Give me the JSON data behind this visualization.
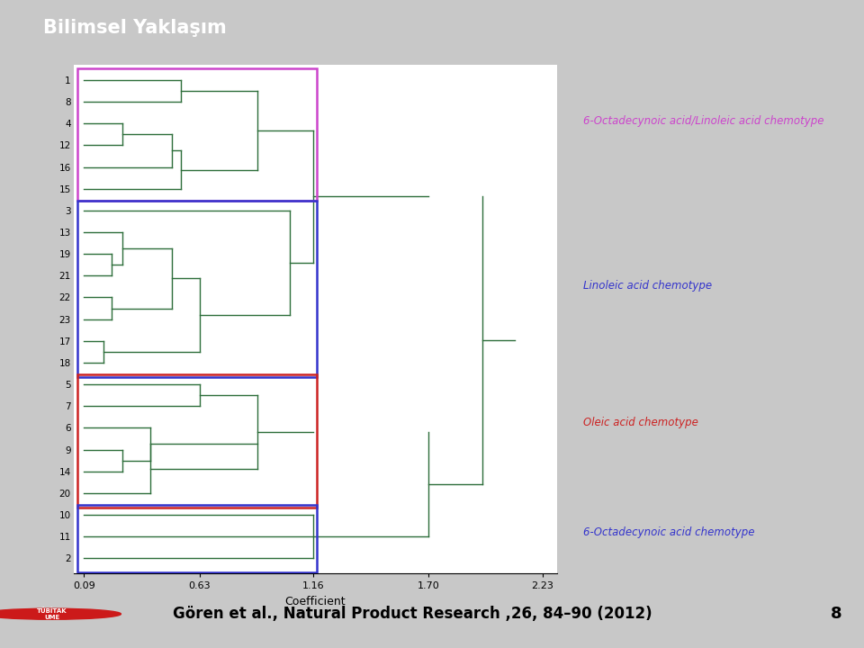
{
  "title_text": "Bilimsel Yaklaşım",
  "title_bg": "#cc1a1a",
  "title_color": "white",
  "footer_text": "Gören et al., Natural Product Research ,26, 84–90 (2012)",
  "footer_number": "8",
  "outer_bg": "#c8c8c8",
  "plot_bg": "white",
  "dendrogram_color": "#2d6e3a",
  "xlabel": "Coefficient",
  "x_ticks": [
    0.09,
    0.63,
    1.16,
    1.7,
    2.23
  ],
  "x_labels": [
    "0.09",
    "0.63",
    "1.16",
    "1.70",
    "2.23"
  ],
  "labels_top_to_bottom": [
    "1",
    "8",
    "4",
    "12",
    "16",
    "15",
    "3",
    "13",
    "19",
    "21",
    "22",
    "23",
    "17",
    "18",
    "5",
    "7",
    "6",
    "9",
    "14",
    "20",
    "10",
    "11",
    "2"
  ],
  "box1_color": "#cc44cc",
  "box2_color": "#3333cc",
  "box3_color": "#cc2222",
  "box4_color": "#3333cc",
  "label1": "6-Octadecynoic acid/Linoleic acid chemotype",
  "label1_color": "#cc44cc",
  "label2": "Linoleic acid chemotype",
  "label2_color": "#3333cc",
  "label3": "Oleic acid chemotype",
  "label3_color": "#cc2222",
  "label4": "6-Octadecynoic acid chemotype",
  "label4_color": "#3333cc"
}
